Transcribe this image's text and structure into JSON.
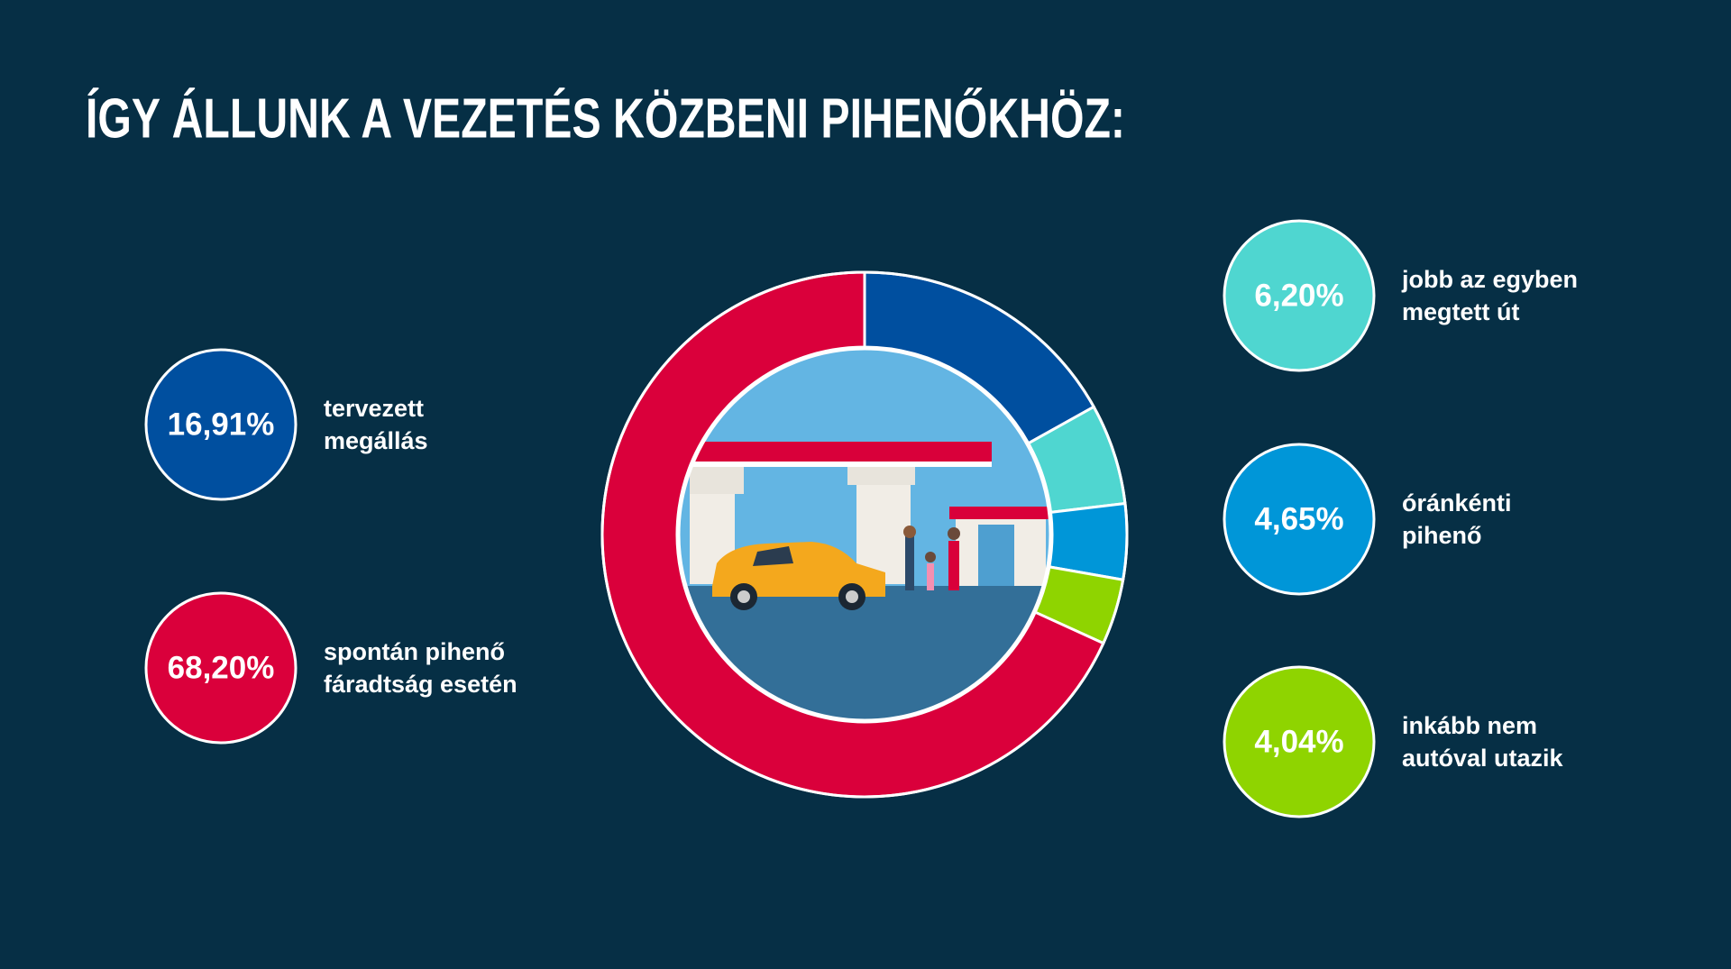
{
  "chart_data": {
    "type": "donut",
    "title": "ÍGY ÁLLUNK A VEZETÉS KÖZBENI PIHENŐKHÖZ:",
    "categories": [
      [
        "tervezett",
        "megállás"
      ],
      [
        "jobb az egyben",
        "megtett út"
      ],
      [
        "óránkénti",
        "pihenő"
      ],
      [
        "inkább nem",
        "autóval utazik"
      ],
      [
        "spontán pihenő",
        "fáradtság esetén"
      ]
    ],
    "values": [
      16.91,
      6.2,
      4.65,
      4.04,
      68.2
    ],
    "value_labels": [
      "16,91%",
      "6,20%",
      "4,65%",
      "4,04%",
      "68,20%"
    ],
    "colors": [
      "#004f9f",
      "#4fd6d0",
      "#0096d8",
      "#8fd400",
      "#da003b"
    ]
  }
}
